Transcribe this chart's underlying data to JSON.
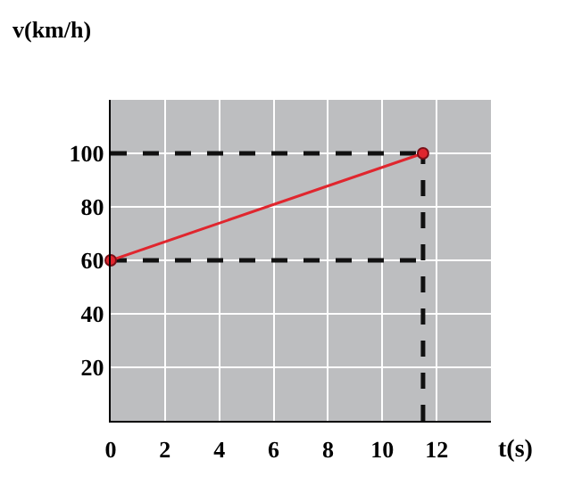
{
  "chart_data": {
    "type": "line",
    "xlabel": "t(s)",
    "ylabel": "v(km/h)",
    "x": [
      0,
      11.5
    ],
    "series": [
      {
        "color": "#e0262e",
        "values": [
          60,
          100
        ]
      },
      {
        "color": "#111111",
        "line_style": "dashed",
        "marker": "none",
        "values": [
          100,
          100
        ]
      },
      {
        "color": "#111111",
        "line_style": "dashed",
        "marker": "none",
        "values": [
          60,
          60
        ]
      },
      {
        "color": "#111111",
        "line_style": "dashed",
        "marker": "none",
        "x": [
          11.5,
          11.5
        ],
        "values": [
          0,
          100
        ]
      }
    ],
    "marker": "circle",
    "xlim": [
      0,
      14
    ],
    "ylim": [
      0,
      120
    ],
    "xticks": [
      0,
      2,
      4,
      6,
      8,
      10,
      12
    ],
    "yticks": [
      20,
      40,
      60,
      80,
      100
    ],
    "grid": true
  }
}
